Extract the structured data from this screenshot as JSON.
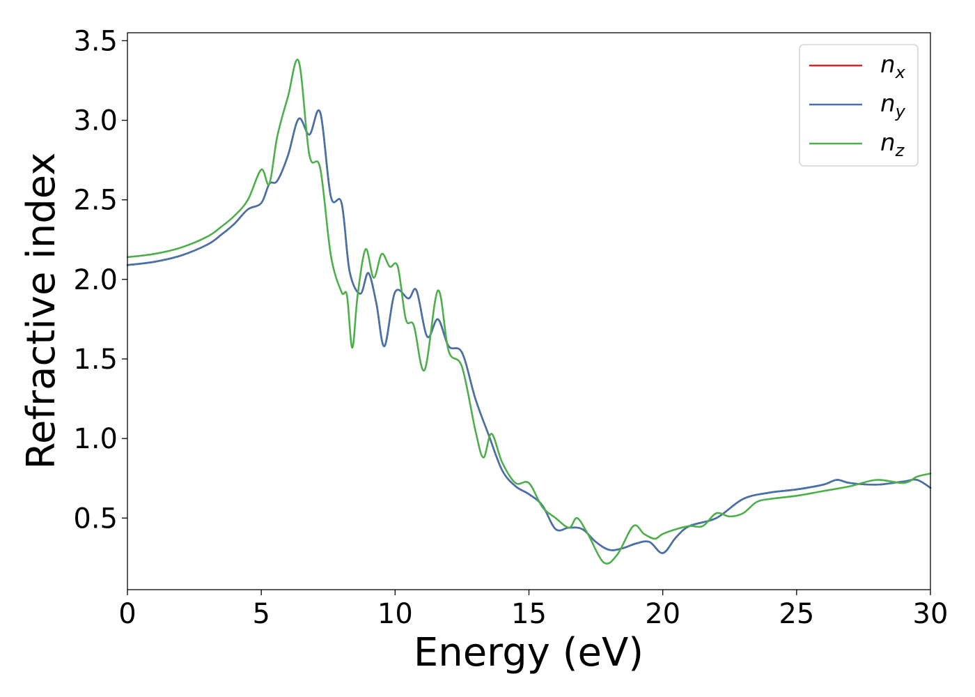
{
  "chart_data": {
    "type": "line",
    "xlabel": "Energy (eV)",
    "ylabel": "Refractive index",
    "xlim": [
      0,
      30
    ],
    "ylim": [
      0.05,
      3.55
    ],
    "xticks": [
      "0",
      "5",
      "10",
      "15",
      "20",
      "25",
      "30"
    ],
    "yticks": [
      "0.5",
      "1.0",
      "1.5",
      "2.0",
      "2.5",
      "3.0",
      "3.5"
    ],
    "legend_position": "top-right",
    "grid": false,
    "series": [
      {
        "name": "n",
        "sub": "x",
        "color": "#d62728",
        "x": [
          0,
          1,
          2,
          3,
          3.5,
          4,
          4.5,
          5,
          5.3,
          5.6,
          6,
          6.4,
          6.8,
          7.2,
          7.6,
          8,
          8.3,
          8.7,
          9,
          9.3,
          9.6,
          10,
          10.5,
          10.8,
          11.2,
          11.6,
          12,
          12.5,
          13,
          13.5,
          14,
          14.5,
          15,
          15.5,
          16,
          16.5,
          17,
          17.5,
          18,
          18.5,
          19,
          19.5,
          20,
          20.5,
          21,
          22,
          23,
          24,
          25,
          26,
          26.5,
          27,
          28,
          29,
          29.5,
          30
        ],
        "y": [
          2.09,
          2.11,
          2.15,
          2.22,
          2.28,
          2.35,
          2.44,
          2.48,
          2.6,
          2.62,
          2.78,
          3.01,
          2.91,
          3.05,
          2.52,
          2.48,
          2.05,
          1.91,
          2.04,
          1.85,
          1.58,
          1.92,
          1.88,
          1.93,
          1.64,
          1.75,
          1.58,
          1.54,
          1.25,
          1.02,
          0.8,
          0.7,
          0.65,
          0.58,
          0.43,
          0.44,
          0.43,
          0.35,
          0.3,
          0.31,
          0.34,
          0.35,
          0.28,
          0.38,
          0.45,
          0.5,
          0.62,
          0.66,
          0.68,
          0.71,
          0.74,
          0.72,
          0.71,
          0.73,
          0.74,
          0.69
        ]
      },
      {
        "name": "n",
        "sub": "y",
        "color": "#4472aa",
        "x": [
          0,
          1,
          2,
          3,
          3.5,
          4,
          4.5,
          5,
          5.3,
          5.6,
          6,
          6.4,
          6.8,
          7.2,
          7.6,
          8,
          8.3,
          8.7,
          9,
          9.3,
          9.6,
          10,
          10.5,
          10.8,
          11.2,
          11.6,
          12,
          12.5,
          13,
          13.5,
          14,
          14.5,
          15,
          15.5,
          16,
          16.5,
          17,
          17.5,
          18,
          18.5,
          19,
          19.5,
          20,
          20.5,
          21,
          22,
          23,
          24,
          25,
          26,
          26.5,
          27,
          28,
          29,
          29.5,
          30
        ],
        "y": [
          2.09,
          2.11,
          2.15,
          2.22,
          2.28,
          2.35,
          2.44,
          2.48,
          2.6,
          2.62,
          2.78,
          3.01,
          2.91,
          3.05,
          2.52,
          2.48,
          2.05,
          1.91,
          2.04,
          1.85,
          1.58,
          1.92,
          1.88,
          1.93,
          1.64,
          1.75,
          1.58,
          1.54,
          1.25,
          1.02,
          0.8,
          0.7,
          0.65,
          0.58,
          0.43,
          0.44,
          0.43,
          0.35,
          0.3,
          0.31,
          0.34,
          0.35,
          0.28,
          0.38,
          0.45,
          0.5,
          0.62,
          0.66,
          0.68,
          0.71,
          0.74,
          0.72,
          0.71,
          0.73,
          0.74,
          0.69
        ]
      },
      {
        "name": "n",
        "sub": "z",
        "color": "#4daf4a",
        "x": [
          0,
          1,
          2,
          3,
          3.5,
          4,
          4.5,
          5,
          5.3,
          5.6,
          6,
          6.4,
          6.8,
          7.2,
          7.6,
          8,
          8.2,
          8.4,
          8.6,
          8.9,
          9.2,
          9.5,
          9.8,
          10.1,
          10.4,
          10.7,
          11.1,
          11.6,
          12,
          12.5,
          13,
          13.3,
          13.6,
          14,
          14.5,
          15,
          15.5,
          16,
          16.5,
          16.8,
          17.2,
          17.8,
          18.3,
          18.9,
          19.3,
          19.7,
          20,
          20.5,
          21,
          21.5,
          22,
          22.5,
          23,
          23.5,
          24,
          25,
          26,
          27,
          28,
          29,
          29.5,
          30
        ],
        "y": [
          2.14,
          2.16,
          2.2,
          2.27,
          2.33,
          2.4,
          2.5,
          2.69,
          2.6,
          2.9,
          3.15,
          3.37,
          2.78,
          2.7,
          2.15,
          1.92,
          1.9,
          1.57,
          1.9,
          2.19,
          2.01,
          2.16,
          2.08,
          2.08,
          1.75,
          1.71,
          1.43,
          1.93,
          1.55,
          1.45,
          1.05,
          0.88,
          1.03,
          0.85,
          0.72,
          0.72,
          0.57,
          0.5,
          0.44,
          0.5,
          0.4,
          0.22,
          0.27,
          0.45,
          0.4,
          0.37,
          0.4,
          0.43,
          0.45,
          0.45,
          0.53,
          0.51,
          0.53,
          0.6,
          0.62,
          0.64,
          0.67,
          0.7,
          0.74,
          0.72,
          0.76,
          0.78
        ]
      }
    ]
  }
}
